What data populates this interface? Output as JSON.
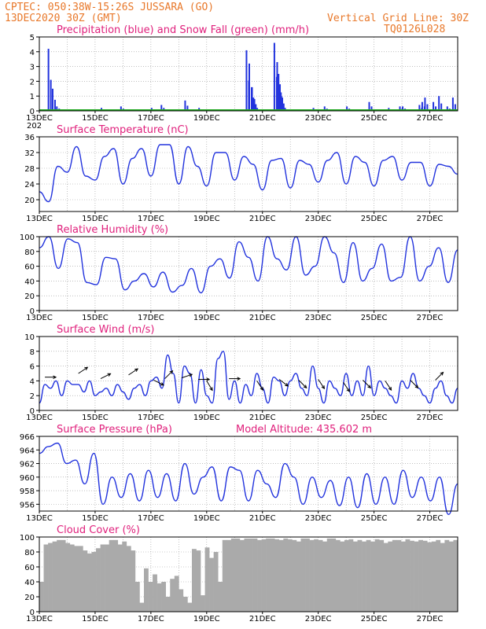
{
  "header": {
    "line1": "CPTEC:   050:38W-15:26S   JUSSARA (GO)",
    "line2": "13DEC2020 30Z (GMT)",
    "grid_note": "Vertical Grid Line: 30Z",
    "code": "TQ0126L028"
  },
  "x_axis": {
    "tick_labels": [
      "13DEC",
      "15DEC",
      "17DEC",
      "19DEC",
      "21DEC",
      "23DEC",
      "25DEC",
      "27DEC"
    ],
    "stray_label": "202"
  },
  "colors": {
    "series": "#2233dd",
    "snow": "#22aa22",
    "cloud": "#aaaaaa",
    "title": "#e0207c",
    "header": "#e8782a",
    "arrow": "#000000"
  },
  "chart_data": [
    {
      "id": "precip",
      "type": "bar",
      "title": "Precipitation (blue) and Snow Fall (green) (mm/h)",
      "ylim": [
        0,
        5
      ],
      "yticks": [
        0,
        1,
        2,
        3,
        4,
        5
      ],
      "x_days": [
        0.3,
        0.45,
        0.6,
        1.3,
        2.2,
        2.4,
        2.9,
        3.1,
        4.0,
        4.35,
        4.5,
        5.2,
        5.7,
        7.4,
        7.5,
        7.6,
        7.65,
        7.7,
        8.4,
        8.5,
        8.55,
        8.6,
        8.65,
        8.7,
        9.8,
        10.2,
        11.0,
        11.4,
        11.8,
        12.5,
        12.9,
        13.0,
        13.3,
        13.6,
        13.7,
        13.8,
        14.1,
        14.3,
        14.6,
        14.8
      ],
      "values": [
        4.2,
        1.5,
        0.3,
        0.1,
        0.2,
        0.1,
        0.3,
        0.1,
        0.2,
        0.4,
        0.1,
        0.7,
        0.2,
        4.1,
        3.2,
        1.6,
        0.9,
        0.4,
        4.6,
        3.3,
        2.5,
        1.8,
        1.0,
        0.4,
        0.2,
        0.3,
        0.3,
        0.1,
        0.6,
        0.2,
        0.3,
        0.3,
        0.1,
        0.4,
        0.6,
        0.9,
        0.6,
        1.0,
        0.3,
        0.9
      ],
      "snow": 0
    },
    {
      "id": "temp",
      "type": "line",
      "title": "Surface Temperature (nC)",
      "ylim": [
        17,
        36
      ],
      "yticks": [
        20,
        24,
        28,
        32,
        36
      ],
      "period_days": 1,
      "values": [
        22,
        19.5,
        28.5,
        27,
        33.5,
        26,
        25,
        31,
        33,
        24,
        30.5,
        33,
        26,
        34,
        34,
        24,
        33.5,
        28.5,
        23.5,
        32,
        32,
        25,
        31,
        29,
        22.5,
        30,
        30.5,
        23,
        30,
        29,
        24.5,
        30,
        32,
        24,
        31,
        29.5,
        23.5,
        30,
        31,
        25,
        29.5,
        29.5,
        23.5,
        29,
        28.5,
        26.5
      ]
    },
    {
      "id": "rh",
      "type": "line",
      "title": "Relative Humidity (%)",
      "ylim": [
        0,
        100
      ],
      "yticks": [
        0,
        20,
        40,
        60,
        80,
        100
      ],
      "values": [
        85,
        100,
        57,
        97,
        92,
        38,
        35,
        72,
        70,
        28,
        40,
        50,
        32,
        52,
        25,
        34,
        57,
        24,
        60,
        70,
        44,
        93,
        72,
        40,
        100,
        70,
        55,
        100,
        48,
        60,
        100,
        78,
        38,
        92,
        40,
        57,
        90,
        40,
        45,
        100,
        40,
        60,
        85,
        38,
        82
      ]
    },
    {
      "id": "wind",
      "type": "line",
      "title": "Surface Wind (m/s)",
      "ylim": [
        0,
        10
      ],
      "yticks": [
        0,
        2,
        4,
        6,
        8,
        10
      ],
      "values": [
        1,
        3.5,
        3,
        4,
        2,
        4,
        3.5,
        3.5,
        2.5,
        4,
        2,
        2.5,
        3,
        2,
        3.5,
        2.5,
        1.5,
        3,
        3.5,
        2,
        4,
        4.5,
        3,
        7.5,
        5,
        1,
        6,
        5,
        1,
        5.5,
        2,
        1,
        7,
        8,
        1.5,
        4,
        1,
        3.5,
        2,
        5,
        3,
        1,
        4.5,
        4,
        2,
        4,
        5,
        3,
        2,
        6,
        3,
        1,
        4,
        3,
        2,
        5,
        2,
        4,
        2,
        6,
        2,
        4,
        3,
        2,
        1,
        4,
        3,
        5,
        3,
        2,
        1,
        3,
        4,
        2,
        1,
        3
      ],
      "arrows": [
        [
          0.2,
          4.5,
          2.5,
          0
        ],
        [
          1.4,
          5,
          3,
          -2
        ],
        [
          2.2,
          4.3,
          2,
          -1
        ],
        [
          3.2,
          4.8,
          3,
          -2
        ],
        [
          4.1,
          4.1,
          2,
          1
        ],
        [
          4.5,
          4.3,
          2,
          -2
        ],
        [
          5.1,
          4.4,
          3,
          -1
        ],
        [
          5.7,
          4.2,
          3,
          0
        ],
        [
          6,
          4,
          3,
          5
        ],
        [
          6.8,
          4.3,
          4,
          0
        ],
        [
          7.8,
          4,
          2,
          3
        ],
        [
          8.6,
          4.2,
          4,
          3
        ],
        [
          9.3,
          4.1,
          2,
          2
        ],
        [
          10,
          4.2,
          2,
          3
        ],
        [
          10.9,
          3.8,
          2,
          3
        ],
        [
          11.6,
          4.1,
          3,
          3
        ],
        [
          12.4,
          4,
          2,
          3
        ],
        [
          13.3,
          4.1,
          2,
          2
        ],
        [
          14.2,
          4.1,
          2,
          -2
        ]
      ]
    },
    {
      "id": "press",
      "type": "line",
      "title": "Surface Pressure (hPa)",
      "ylim": [
        955,
        966
      ],
      "yticks": [
        956,
        958,
        960,
        962,
        964,
        966
      ],
      "altitude_label": "Model Altitude: 435.602  m",
      "values": [
        963.5,
        964.5,
        965,
        962,
        962.5,
        959,
        963.5,
        956,
        960,
        957,
        960.5,
        956.5,
        961,
        957,
        960.5,
        956.5,
        962,
        957.5,
        960,
        961.5,
        956.5,
        961.5,
        961,
        956.5,
        961,
        959,
        957,
        962,
        960,
        956,
        960,
        957,
        959.5,
        955.8,
        960,
        955.5,
        960.5,
        956,
        960,
        956,
        961,
        957,
        960,
        956.5,
        960,
        954.5,
        959
      ]
    },
    {
      "id": "cloud",
      "type": "area",
      "title": "Cloud Cover (%)",
      "ylim": [
        0,
        100
      ],
      "yticks": [
        0,
        20,
        40,
        60,
        80,
        100
      ],
      "values": [
        40,
        90,
        92,
        94,
        96,
        96,
        92,
        90,
        88,
        88,
        82,
        78,
        80,
        85,
        90,
        90,
        96,
        96,
        90,
        94,
        88,
        82,
        40,
        12,
        58,
        40,
        50,
        38,
        40,
        20,
        44,
        48,
        30,
        20,
        12,
        84,
        82,
        22,
        86,
        72,
        80,
        40,
        96,
        96,
        98,
        98,
        96,
        98,
        98,
        98,
        96,
        97,
        98,
        98,
        97,
        96,
        98,
        97,
        96,
        94,
        98,
        98,
        96,
        97,
        96,
        94,
        98,
        98,
        96,
        94,
        96,
        97,
        94,
        96,
        94,
        96,
        94,
        97,
        96,
        92,
        94,
        96,
        96,
        94,
        97,
        95,
        94,
        96,
        95,
        93,
        94,
        96,
        92,
        96,
        94,
        96
      ]
    }
  ]
}
